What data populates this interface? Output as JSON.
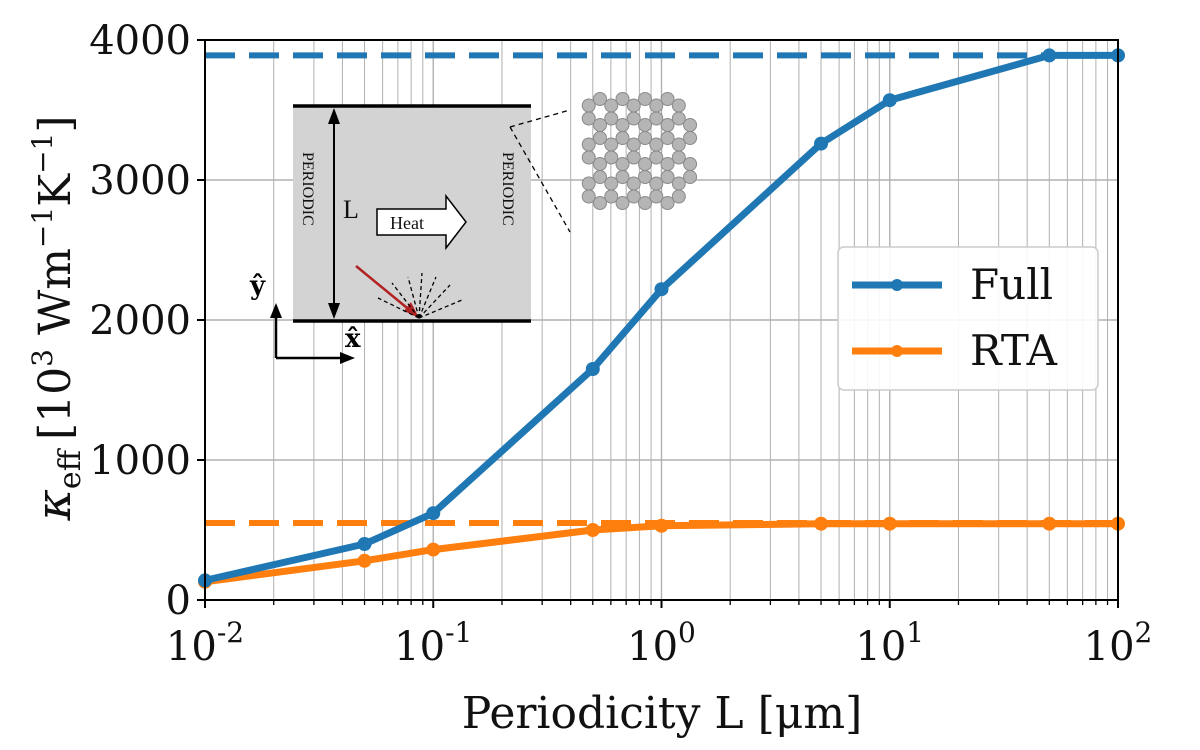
{
  "chart_data": {
    "type": "line",
    "xscale": "log",
    "xlim": [
      0.01,
      100
    ],
    "ylim": [
      0,
      4000
    ],
    "grid": true,
    "xlabel": "Periodicity L [μm]",
    "ylabel": {
      "symbol": "κ",
      "subscript": "eff",
      "units_open": "[10",
      "units_exp": "3",
      "units_mid": " Wm",
      "units_exp2": "−1",
      "units_mid2": "K",
      "units_exp3": "−1",
      "units_close": "]"
    },
    "yticks": [
      0,
      1000,
      2000,
      3000,
      4000
    ],
    "xticks": [
      {
        "value": 0.01,
        "base": "10",
        "exp": "-2"
      },
      {
        "value": 0.1,
        "base": "10",
        "exp": "-1"
      },
      {
        "value": 1,
        "base": "10",
        "exp": "0"
      },
      {
        "value": 10,
        "base": "10",
        "exp": "1"
      },
      {
        "value": 100,
        "base": "10",
        "exp": "2"
      }
    ],
    "series": [
      {
        "name": "Full",
        "color": "#1f77b4",
        "x": [
          0.01,
          0.05,
          0.1,
          0.5,
          1,
          5,
          10,
          50,
          100
        ],
        "y": [
          140,
          400,
          620,
          1650,
          2220,
          3260,
          3570,
          3890,
          3890
        ],
        "asymptote": 3890
      },
      {
        "name": "RTA",
        "color": "#ff7f0e",
        "x": [
          0.01,
          0.05,
          0.1,
          0.5,
          1,
          5,
          10,
          50,
          100
        ],
        "y": [
          130,
          280,
          360,
          500,
          530,
          545,
          545,
          545,
          545
        ],
        "asymptote": 550
      }
    ],
    "legend_position": "center-right"
  },
  "inset": {
    "label_periodic_left": "PERIODIC",
    "label_periodic_right": "PERIODIC",
    "label_length": "L",
    "label_heat": "Heat",
    "axis_y": "ŷ",
    "axis_x": "x̂"
  }
}
